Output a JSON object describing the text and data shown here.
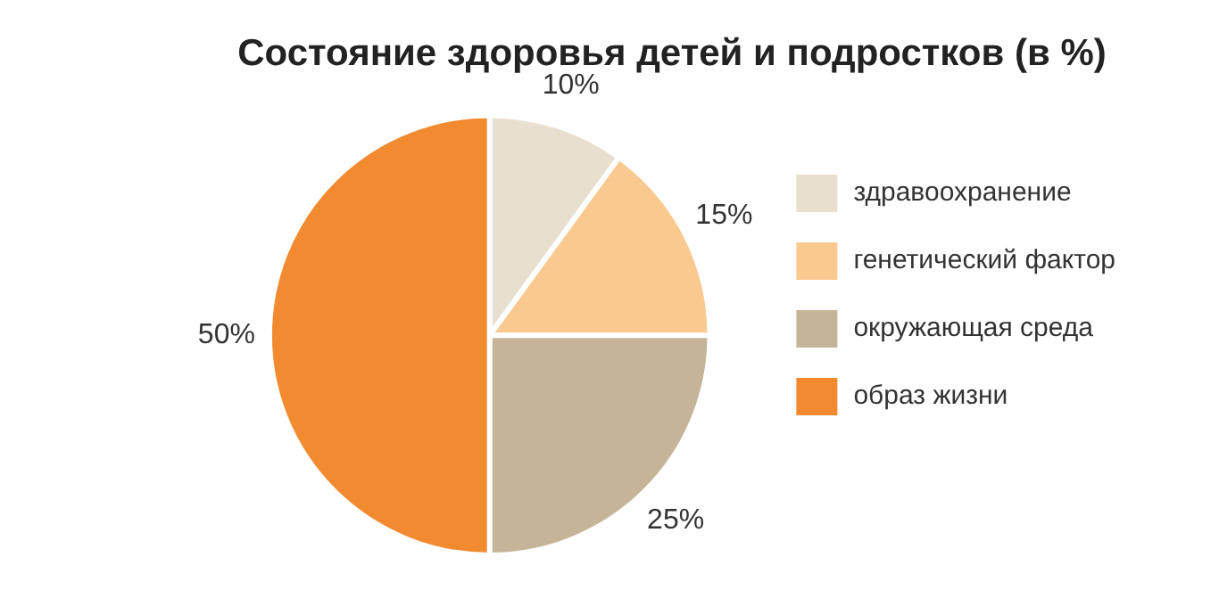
{
  "chart_data": {
    "type": "pie",
    "title": "Состояние здоровья детей и подростков (в %)",
    "categories": [
      "здравоохранение",
      "генетический фактор",
      "окружающая среда",
      "образ жизни"
    ],
    "values": [
      10,
      15,
      25,
      50
    ],
    "colors": [
      "#e9dfcf",
      "#fac990",
      "#c5b498",
      "#f28a30"
    ],
    "value_labels": [
      "10%",
      "15%",
      "25%",
      "50%"
    ],
    "legend": "right"
  }
}
